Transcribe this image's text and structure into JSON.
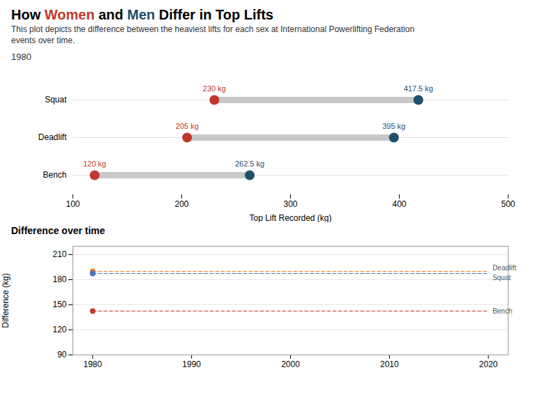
{
  "chart_data": [
    {
      "type": "dumbbell",
      "title": "How Women and Men Differ in Top Lifts",
      "subtitle": "This plot depicts the difference between the heaviest lifts for each sex at International Powerlifting Federation\nevents over time.",
      "annotation": "1980",
      "categories": [
        "Squat",
        "Deadlift",
        "Bench"
      ],
      "series": [
        {
          "name": "Women",
          "color": "#c0392b",
          "values": [
            230,
            205,
            120
          ],
          "value_labels": [
            "230 kg",
            "205 kg",
            "120 kg"
          ]
        },
        {
          "name": "Men",
          "color": "#1f4e6e",
          "values": [
            417.5,
            395,
            262.5
          ],
          "value_labels": [
            "417.5 kg",
            "395 kg",
            "262.5 kg"
          ]
        }
      ],
      "xlabel": "Top Lift Recorded (kg)",
      "xlim": [
        100,
        500
      ],
      "xticks": [
        100,
        200,
        300,
        400,
        500
      ],
      "data_labels": true,
      "grid": false
    },
    {
      "type": "line",
      "title": "Difference over time",
      "ylabel": "Difference (kg)",
      "x": [
        1980,
        2020
      ],
      "series": [
        {
          "name": "Deadlift",
          "color": "#ed7d31",
          "values": [
            190,
            190
          ],
          "line_style": "dashed",
          "marker": "circle"
        },
        {
          "name": "Squat",
          "color": "#4472c4",
          "values": [
            187.5,
            187.5
          ],
          "line_style": "dashed",
          "marker": "circle"
        },
        {
          "name": "Bench",
          "color": "#c0392b",
          "values": [
            142.5,
            142.5
          ],
          "line_style": "dashed",
          "marker": "circle"
        }
      ],
      "xlim": [
        1978,
        2022
      ],
      "xticks": [
        1980,
        1990,
        2000,
        2010,
        2020
      ],
      "ylim": [
        90,
        220
      ],
      "yticks": [
        90,
        120,
        150,
        180,
        210
      ],
      "grid": true
    }
  ]
}
